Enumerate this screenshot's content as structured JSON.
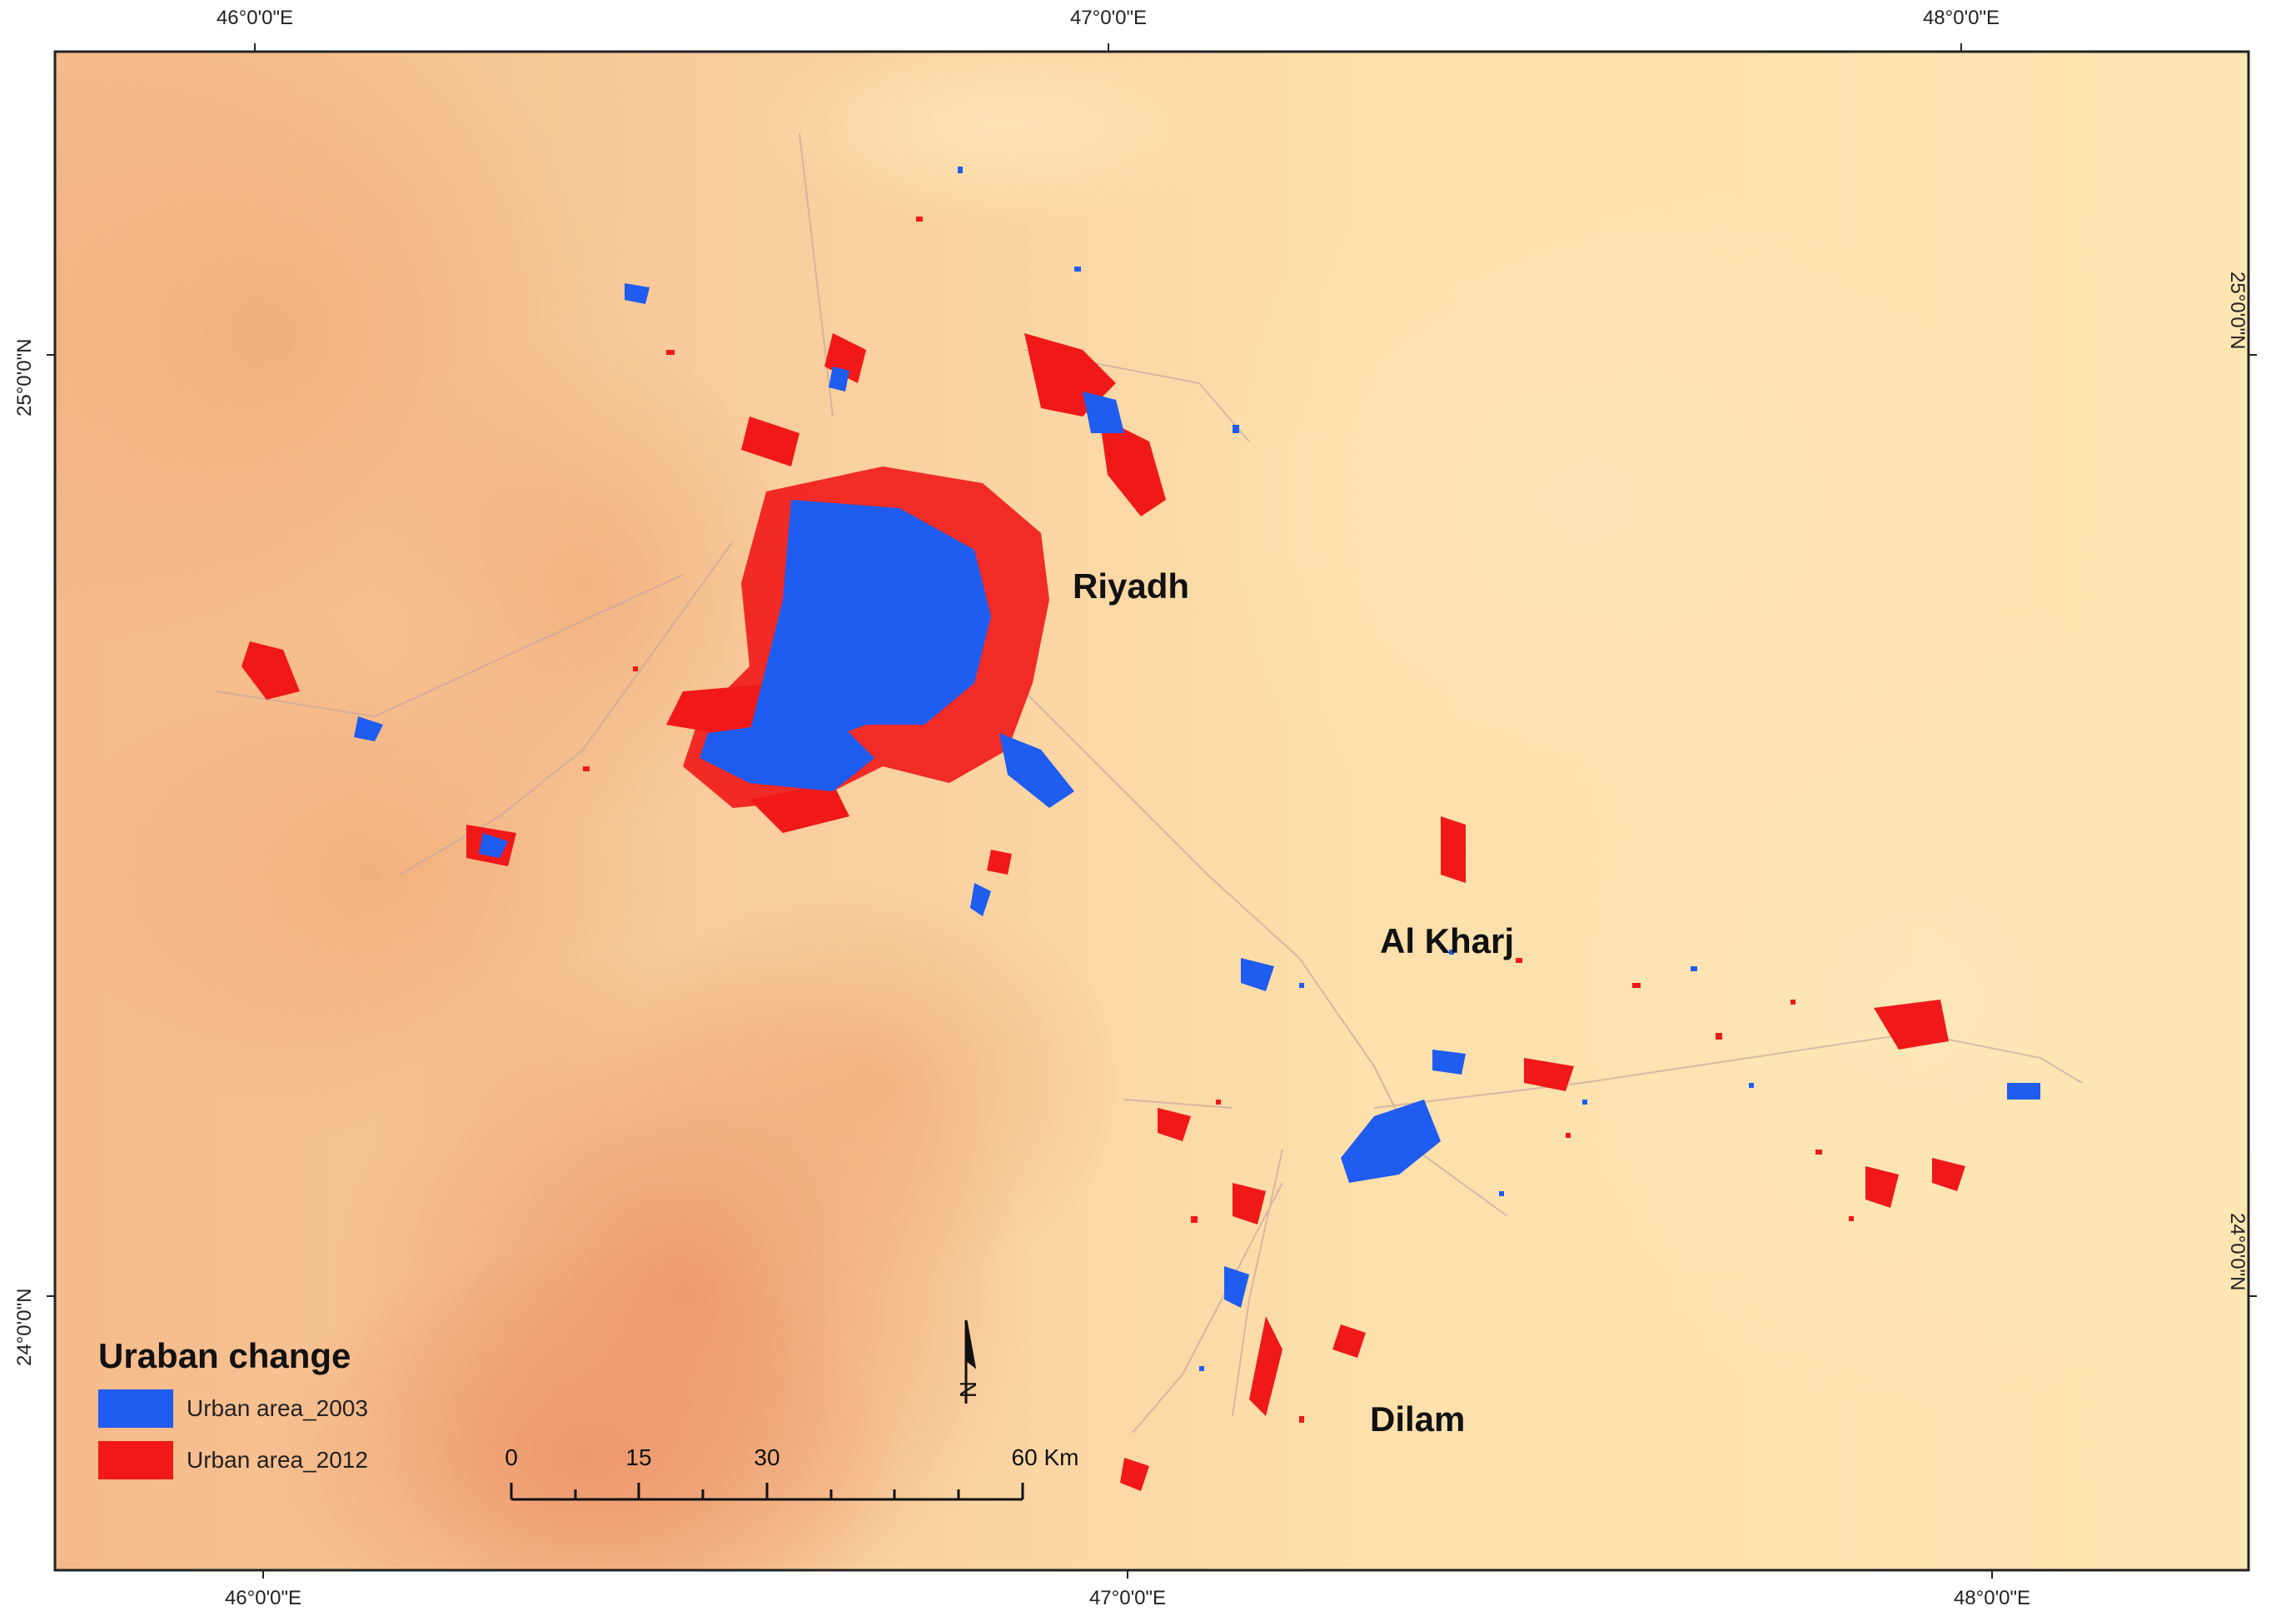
{
  "colors": {
    "background_light": "#fde2a8",
    "background_dark": "#ee9a6e",
    "urban_2003": "#1f5cf0",
    "urban_2012": "#f01818"
  },
  "graticule": {
    "top": [
      "46°0'0\"E",
      "47°0'0\"E",
      "48°0'0\"E"
    ],
    "bottom": [
      "46°0'0\"E",
      "47°0'0\"E",
      "48°0'0\"E"
    ],
    "left": [
      "25°0'0\"N",
      "24°0'0\"N"
    ],
    "right": [
      "25°0'0\"N",
      "24°0'0\"N"
    ]
  },
  "places": [
    "Riyadh",
    "Al Kharj",
    "Dilam"
  ],
  "legend": {
    "title": "Uraban change",
    "items": [
      {
        "label": "Urban area_2003",
        "color": "#1f5cf0"
      },
      {
        "label": "Urban area_2012",
        "color": "#f01818"
      }
    ]
  },
  "scale_bar": {
    "labels": [
      "0",
      "15",
      "30",
      "60 Km"
    ]
  },
  "north_arrow": {
    "label": "N"
  }
}
